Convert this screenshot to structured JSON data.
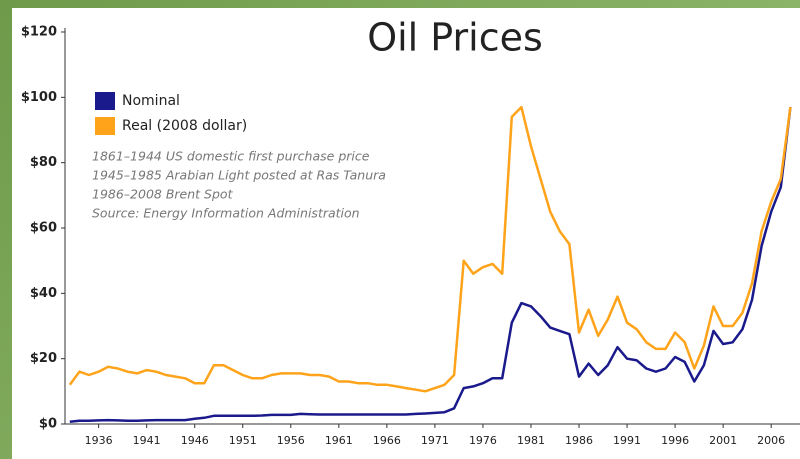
{
  "chart_data": {
    "type": "line",
    "title": "Oil Prices",
    "notes": [
      "1861–1944 US domestic first purchase price",
      "1945–1985 Arabian Light posted at Ras Tanura",
      "1986–2008 Brent Spot",
      "Source: Energy Information Administration"
    ],
    "x": [
      1933,
      1934,
      1935,
      1936,
      1937,
      1938,
      1939,
      1940,
      1941,
      1942,
      1943,
      1944,
      1945,
      1946,
      1947,
      1948,
      1949,
      1950,
      1951,
      1952,
      1953,
      1954,
      1955,
      1956,
      1957,
      1958,
      1959,
      1960,
      1961,
      1962,
      1963,
      1964,
      1965,
      1966,
      1967,
      1968,
      1969,
      1970,
      1971,
      1972,
      1973,
      1974,
      1975,
      1976,
      1977,
      1978,
      1979,
      1980,
      1981,
      1982,
      1983,
      1984,
      1985,
      1986,
      1987,
      1988,
      1989,
      1990,
      1991,
      1992,
      1993,
      1994,
      1995,
      1996,
      1997,
      1998,
      1999,
      2000,
      2001,
      2002,
      2003,
      2004,
      2005,
      2006,
      2007,
      2008
    ],
    "series": [
      {
        "name": "Nominal",
        "color": "#1a1a8c",
        "values": [
          0.7,
          1,
          1,
          1.1,
          1.2,
          1.1,
          1,
          1,
          1.1,
          1.2,
          1.2,
          1.2,
          1.2,
          1.6,
          1.9,
          2.5,
          2.5,
          2.5,
          2.5,
          2.5,
          2.6,
          2.8,
          2.8,
          2.8,
          3.1,
          3,
          2.9,
          2.9,
          2.9,
          2.9,
          2.9,
          2.9,
          2.9,
          2.9,
          2.9,
          2.9,
          3.1,
          3.2,
          3.4,
          3.6,
          4.8,
          11,
          11.5,
          12.5,
          14,
          14,
          31,
          37,
          36,
          33,
          29.5,
          28.5,
          27.5,
          14.5,
          18.5,
          15,
          18,
          23.5,
          20,
          19.5,
          17,
          16,
          17,
          20.5,
          19,
          13,
          18,
          28.5,
          24.5,
          25,
          29,
          38,
          54.5,
          65,
          72.5,
          97
        ]
      },
      {
        "name": "Real (2008 dollar)",
        "color": "#ffa31a",
        "values": [
          12,
          16,
          15,
          16,
          17.5,
          17,
          16,
          15.5,
          16.5,
          16,
          15,
          14.5,
          14,
          12.5,
          12.5,
          18,
          18,
          16.5,
          15,
          14,
          14,
          15,
          15.5,
          15.5,
          15.5,
          15,
          15,
          14.5,
          13,
          13,
          12.5,
          12.5,
          12,
          12,
          11.5,
          11,
          10.5,
          10,
          11,
          12,
          15,
          50,
          46,
          48,
          49,
          46,
          94,
          97,
          85,
          75,
          65,
          59,
          55,
          28,
          35,
          27,
          32,
          39,
          31,
          29,
          25,
          23,
          23,
          28,
          25,
          17,
          24,
          36,
          30,
          30,
          34,
          43,
          59,
          68,
          75,
          97
        ]
      }
    ],
    "xlim": [
      1932.5,
      2009
    ],
    "xticks": [
      1936,
      1941,
      1946,
      1951,
      1956,
      1961,
      1966,
      1971,
      1976,
      1981,
      1986,
      1991,
      1996,
      2001,
      2006
    ],
    "ylim": [
      0,
      120
    ],
    "yticks": [
      {
        "value": 0,
        "label": "$0"
      },
      {
        "value": 20,
        "label": "$20"
      },
      {
        "value": 40,
        "label": "$40"
      },
      {
        "value": 60,
        "label": "$60"
      },
      {
        "value": 80,
        "label": "$80"
      },
      {
        "value": 100,
        "label": "$100"
      },
      {
        "value": 120,
        "label": "$120"
      }
    ]
  }
}
